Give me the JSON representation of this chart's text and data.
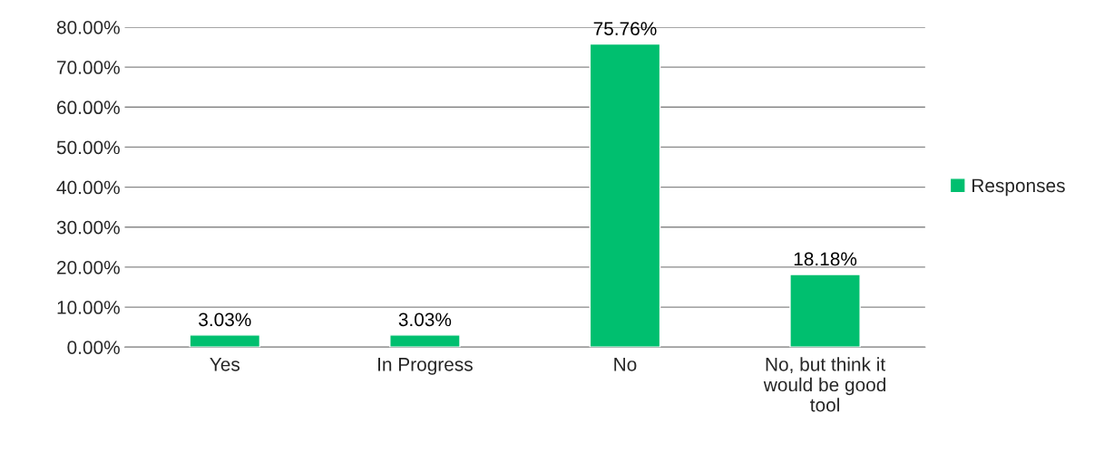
{
  "chart_data": {
    "type": "bar",
    "categories": [
      "Yes",
      "In Progress",
      "No",
      "No, but think it\nwould be good\ntool"
    ],
    "series": [
      {
        "name": "Responses",
        "color": "#00bf6f",
        "values": [
          3.03,
          3.03,
          75.76,
          18.18
        ],
        "value_labels": [
          "3.03%",
          "3.03%",
          "75.76%",
          "18.18%"
        ]
      }
    ],
    "ylim": [
      0,
      80
    ],
    "yticks": [
      {
        "value": 0,
        "label": "0.00%"
      },
      {
        "value": 10,
        "label": "10.00%"
      },
      {
        "value": 20,
        "label": "20.00%"
      },
      {
        "value": 30,
        "label": "30.00%"
      },
      {
        "value": 40,
        "label": "40.00%"
      },
      {
        "value": 50,
        "label": "50.00%"
      },
      {
        "value": 60,
        "label": "60.00%"
      },
      {
        "value": 70,
        "label": "70.00%"
      },
      {
        "value": 80,
        "label": "80.00%"
      }
    ],
    "grid": "y",
    "legend": "right"
  }
}
